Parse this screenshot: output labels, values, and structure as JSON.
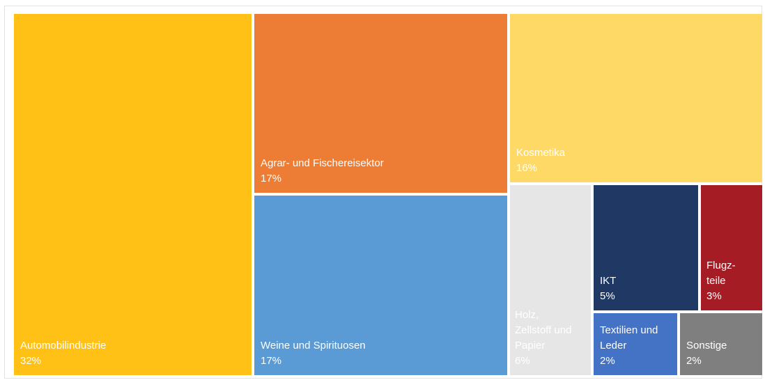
{
  "chart_data": {
    "type": "treemap",
    "title": "",
    "unit": "%",
    "items": [
      {
        "key": "auto",
        "label": "Automobilindustrie",
        "value_label": "32%",
        "value": 32,
        "color": "#FFC115",
        "text_color": "#ffffff"
      },
      {
        "key": "agrar",
        "label": "Agrar- und Fischereisektor",
        "value_label": "17%",
        "value": 17,
        "color": "#ED7D35",
        "text_color": "#ffffff"
      },
      {
        "key": "weine",
        "label": "Weine und Spirituosen",
        "value_label": "17%",
        "value": 17,
        "color": "#5B9BD5",
        "text_color": "#ffffff"
      },
      {
        "key": "kosm",
        "label": "Kosmetika",
        "value_label": "16%",
        "value": 16,
        "color": "#FFD966",
        "text_color": "#ffffff"
      },
      {
        "key": "holz",
        "label": "Holz,\nZellstoff und\nPapier",
        "value_label": "6%",
        "value": 6,
        "color": "#E7E6E6",
        "text_color": "#ffffff"
      },
      {
        "key": "ikt",
        "label": "IKT",
        "value_label": "5%",
        "value": 5,
        "color": "#1F3864",
        "text_color": "#ffffff"
      },
      {
        "key": "flug",
        "label": "Flugz-\nteile",
        "value_label": "3%",
        "value": 3,
        "color": "#A51C24",
        "text_color": "#ffffff"
      },
      {
        "key": "textil",
        "label": "Textilien und\nLeder",
        "value_label": "2%",
        "value": 2,
        "color": "#4472C4",
        "text_color": "#ffffff"
      },
      {
        "key": "sonst",
        "label": "Sonstige",
        "value_label": "2%",
        "value": 2,
        "color": "#7F7F7F",
        "text_color": "#ffffff"
      }
    ]
  }
}
